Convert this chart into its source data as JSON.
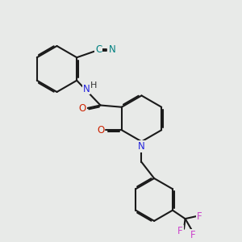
{
  "bg_color": "#e8eae8",
  "bond_color": "#1a1a1a",
  "bond_width": 1.5,
  "dbo": 0.055,
  "atom_colors": {
    "N": "#2222dd",
    "O": "#cc2200",
    "F": "#cc44cc",
    "CN_C": "#008080",
    "CN_N": "#008080"
  }
}
